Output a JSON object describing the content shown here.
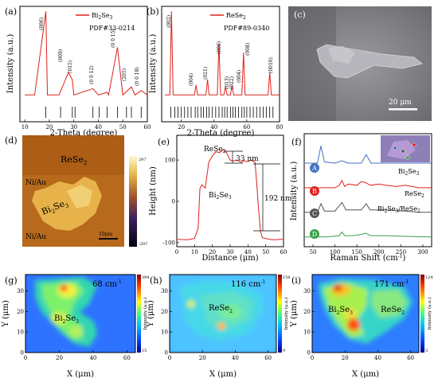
{
  "figure": {
    "panels": {
      "a": {
        "letter": "(a)",
        "xlabel": "2-Theta (degree)",
        "ylabel": "Intensity (a.u.)",
        "legend_main": "Bi",
        "legend_sub1": "2",
        "legend_mid": "Se",
        "legend_sub2": "3",
        "pdf": "PDF#33-0214",
        "peaks": [
          "(006)",
          "(009)",
          "(015)",
          "(0 0 12)",
          "(0 0 15)",
          "(205)",
          "(0 0 18)"
        ],
        "xticks": [
          "10",
          "20",
          "30",
          "40",
          "50",
          "60"
        ]
      },
      "b": {
        "letter": "(b)",
        "xlabel": "2-Theta (degree)",
        "ylabel": "Intensity (a.u.)",
        "legend_main": "ReSe",
        "legend_sub": "2",
        "pdf": "PDF#89-0340",
        "peaks": [
          "(002)",
          "(004)",
          "(021)",
          "(006)",
          "(013)",
          "(022)",
          "(004)",
          "(008)",
          "(0010)"
        ],
        "xticks": [
          "20",
          "40",
          "60",
          "80"
        ]
      },
      "c": {
        "letter": "(c)",
        "scale": "20 μm"
      },
      "d": {
        "letter": "(d)",
        "label_rese": "ReSe",
        "label_rese_sub": "2",
        "label_bise": "Bi",
        "label_bise_sub1": "2",
        "label_bise_mid": "Se",
        "label_bise_sub2": "3",
        "niau_top": "Ni/Au",
        "niau_bottom": "Ni/Au",
        "scale": "10μm",
        "cbar_max": "297",
        "cbar_min": "-297"
      },
      "e": {
        "letter": "(e)",
        "xlabel": "Distance (μm)",
        "ylabel": "Height (nm)",
        "label_rese": "ReSe",
        "label_rese_sub": "2",
        "label_bise": "Bi",
        "label_bise_sub1": "2",
        "label_bise_mid": "Se",
        "label_bise_sub2": "3",
        "step1": "33 nm",
        "step2": "192 nm",
        "xticks": [
          "0",
          "10",
          "20",
          "30",
          "40",
          "50",
          "60"
        ],
        "yticks": [
          "-100",
          "0",
          "100"
        ]
      },
      "f": {
        "letter": "(f)",
        "xlabel": "Raman Shift (cm",
        "xlabel_sup": "-1",
        "xlabel_end": ")",
        "ylabel": "Intensity (a.u.)",
        "markers": [
          "A",
          "B",
          "C",
          "D"
        ],
        "label_a": "Bi",
        "label_a_sub1": "2",
        "label_a_mid": "Se",
        "label_a_sub2": "3",
        "label_b": "ReSe",
        "label_b_sub": "2",
        "label_c": "Bi",
        "label_c_sub1": "2",
        "label_c_mid": "Se",
        "label_c_sub2": "3",
        "label_c_slash": "/ReSe",
        "label_c_sub3": "2",
        "xticks": [
          "50",
          "100",
          "150",
          "200",
          "250",
          "300"
        ]
      },
      "g": {
        "letter": "(g)",
        "wavenumber": "68 cm",
        "wavenumber_sup": "-1",
        "label_bise": "Bi",
        "label_bise_sub1": "2",
        "label_bise_mid": "Se",
        "label_bise_sub2": "3",
        "xlabel": "X (μm)",
        "ylabel": "Y (μm)",
        "cbar_label": "Intensity (a.u.)",
        "cbar_max": "394",
        "cbar_min": "15",
        "xticks": [
          "0",
          "20",
          "40",
          "60"
        ],
        "yticks": [
          "0",
          "10",
          "20",
          "30"
        ]
      },
      "h": {
        "letter": "(h)",
        "wavenumber": "116 cm",
        "wavenumber_sup": "-1",
        "label_rese": "ReSe",
        "label_rese_sub": "2",
        "xlabel": "X (μm)",
        "ylabel": "Y (μm)",
        "cbar_label": "Intensity (a.u.)",
        "cbar_max": "156",
        "cbar_min": "9",
        "xticks": [
          "0",
          "20",
          "40",
          "60"
        ],
        "yticks": [
          "0",
          "10",
          "20",
          "30"
        ]
      },
      "i": {
        "letter": "(i)",
        "wavenumber": "171 cm",
        "wavenumber_sup": "-1",
        "label_bise": "Bi",
        "label_bise_sub1": "2",
        "label_bise_mid": "Se",
        "label_bise_sub2": "3",
        "label_rese": "ReSe",
        "label_rese_sub": "2",
        "xlabel": "X (μm)",
        "ylabel": "Y (μm)",
        "cbar_label": "Intensity (a.u.)",
        "cbar_max": "124",
        "cbar_min": "5",
        "xticks": [
          "0",
          "20",
          "40",
          "60"
        ],
        "yticks": [
          "0",
          "10",
          "20",
          "30"
        ]
      }
    }
  },
  "chart_data": [
    {
      "type": "line",
      "panel": "a",
      "title": "",
      "xlabel": "2-Theta (degree)",
      "ylabel": "Intensity (a.u.)",
      "xlim": [
        10,
        60
      ],
      "series": [
        {
          "name": "Bi2Se3",
          "color": "#e0201c",
          "x": [
            10,
            14,
            18.6,
            19.2,
            24,
            27.8,
            29.4,
            30,
            37.8,
            40,
            43.6,
            44.2,
            47.8,
            50,
            53.5,
            55,
            57.5,
            60
          ],
          "y": [
            0.05,
            0.05,
            0.98,
            0.05,
            0.05,
            0.3,
            0.22,
            0.05,
            0.12,
            0.05,
            0.08,
            0.05,
            0.58,
            0.05,
            0.14,
            0.05,
            0.1,
            0.05
          ]
        }
      ],
      "reference_ticks": [
        18.6,
        24.6,
        29.4,
        30.5,
        37.8,
        40.3,
        43.6,
        47.8,
        51.5,
        53.5,
        57.5
      ]
    },
    {
      "type": "line",
      "panel": "b",
      "title": "",
      "xlabel": "2-Theta (degree)",
      "ylabel": "Intensity (a.u.)",
      "xlim": [
        10,
        80
      ],
      "series": [
        {
          "name": "ReSe2",
          "color": "#e0201c",
          "x": [
            10,
            13,
            14,
            15,
            28,
            29,
            30,
            35,
            36,
            37,
            42,
            43,
            44,
            46,
            47,
            48,
            50,
            51,
            52,
            57,
            58,
            59,
            73,
            74,
            75,
            80
          ],
          "y": [
            0.05,
            0.05,
            0.98,
            0.05,
            0.05,
            0.16,
            0.05,
            0.05,
            0.22,
            0.05,
            0.05,
            0.62,
            0.05,
            0.05,
            0.14,
            0.05,
            0.05,
            0.15,
            0.05,
            0.05,
            0.52,
            0.05,
            0.05,
            0.3,
            0.05,
            0.05
          ]
        }
      ],
      "reference_ticks": [
        13.6,
        16,
        18,
        20,
        22,
        24,
        26,
        28.5,
        30,
        32,
        33.5,
        35.5,
        37,
        39,
        41,
        43,
        45,
        46.5,
        48,
        50,
        51.5,
        53,
        55,
        57,
        58.5,
        60,
        62,
        64,
        66,
        68,
        70,
        72,
        74,
        76
      ]
    },
    {
      "type": "line",
      "panel": "e",
      "title": "",
      "xlabel": "Distance (μm)",
      "ylabel": "Height (nm)",
      "xlim": [
        0,
        60
      ],
      "ylim": [
        -110,
        160
      ],
      "series": [
        {
          "name": "",
          "color": "#e0201c",
          "x": [
            0,
            6,
            10,
            12,
            13,
            14,
            16,
            18,
            20,
            22,
            24,
            26,
            28,
            30,
            32,
            34,
            36,
            38,
            40,
            42,
            44,
            45,
            46,
            47,
            48,
            52,
            55,
            58,
            60
          ],
          "y": [
            -92,
            -93,
            -90,
            -65,
            30,
            40,
            32,
            95,
            110,
            120,
            118,
            125,
            118,
            100,
            98,
            100,
            95,
            98,
            96,
            100,
            94,
            40,
            -20,
            -70,
            -88,
            -92,
            -93,
            -92,
            -92
          ]
        }
      ]
    },
    {
      "type": "line",
      "panel": "f",
      "title": "",
      "xlabel": "Raman Shift (cm-1)",
      "ylabel": "Intensity (a.u.)",
      "xlim": [
        30,
        320
      ],
      "series": [
        {
          "name": "A",
          "color": "#4472c4",
          "x": [
            30,
            60,
            68,
            76,
            100,
            116,
            130,
            160,
            171,
            182,
            220,
            260,
            300,
            320
          ],
          "y": [
            3.2,
            3.2,
            3.9,
            3.25,
            3.2,
            3.3,
            3.2,
            3.2,
            3.55,
            3.2,
            3.2,
            3.2,
            3.2,
            3.2
          ]
        },
        {
          "name": "B",
          "color": "#e0201c",
          "x": [
            30,
            100,
            110,
            116,
            122,
            130,
            150,
            160,
            171,
            180,
            200,
            215,
            240,
            260,
            290,
            320
          ],
          "y": [
            2.2,
            2.2,
            2.3,
            2.5,
            2.25,
            2.35,
            2.3,
            2.45,
            2.4,
            2.3,
            2.35,
            2.3,
            2.25,
            2.3,
            2.2,
            2.2
          ]
        },
        {
          "name": "C",
          "color": "#555555",
          "x": [
            30,
            60,
            68,
            76,
            100,
            116,
            125,
            160,
            171,
            180,
            215,
            260,
            290,
            320
          ],
          "y": [
            1.2,
            1.2,
            1.55,
            1.25,
            1.25,
            1.6,
            1.3,
            1.3,
            1.55,
            1.3,
            1.3,
            1.25,
            1.2,
            1.2
          ]
        },
        {
          "name": "D",
          "color": "#3aa14a",
          "x": [
            30,
            80,
            110,
            116,
            122,
            140,
            160,
            171,
            180,
            215,
            260,
            320
          ],
          "y": [
            0.2,
            0.2,
            0.25,
            0.4,
            0.25,
            0.25,
            0.3,
            0.35,
            0.25,
            0.25,
            0.22,
            0.2
          ]
        }
      ]
    },
    {
      "type": "heatmap",
      "panel": "g",
      "title": "",
      "xlabel": "X (μm)",
      "ylabel": "Y (μm)",
      "xlim": [
        0,
        65
      ],
      "ylim": [
        0,
        38
      ],
      "clim": [
        15,
        394
      ]
    },
    {
      "type": "heatmap",
      "panel": "h",
      "title": "",
      "xlabel": "X (μm)",
      "ylabel": "Y (μm)",
      "xlim": [
        0,
        65
      ],
      "ylim": [
        0,
        38
      ],
      "clim": [
        9,
        156
      ]
    },
    {
      "type": "heatmap",
      "panel": "i",
      "title": "",
      "xlabel": "X (μm)",
      "ylabel": "Y (μm)",
      "xlim": [
        0,
        65
      ],
      "ylim": [
        0,
        38
      ],
      "clim": [
        5,
        124
      ]
    }
  ]
}
